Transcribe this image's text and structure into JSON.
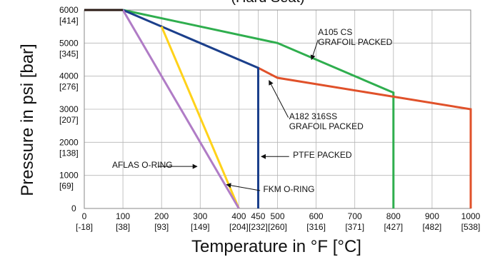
{
  "chart_data": {
    "type": "line",
    "title_fragment": "(Hard Seat)",
    "xlabel": "Temperature in °F [°C]",
    "ylabel": "Pressure in psi [bar]",
    "xlim": [
      0,
      1000
    ],
    "ylim": [
      0,
      6000
    ],
    "grid": true,
    "x_ticks": [
      {
        "value": 0,
        "label": "0",
        "sub": "[-18]"
      },
      {
        "value": 100,
        "label": "100",
        "sub": "[38]"
      },
      {
        "value": 200,
        "label": "200",
        "sub": "[93]"
      },
      {
        "value": 300,
        "label": "300",
        "sub": "[149]"
      },
      {
        "value": 400,
        "label": "400",
        "sub": "[204]"
      },
      {
        "value": 450,
        "label": "450",
        "sub": "[232]"
      },
      {
        "value": 500,
        "label": "500",
        "sub": "[260]"
      },
      {
        "value": 600,
        "label": "600",
        "sub": "[316]"
      },
      {
        "value": 700,
        "label": "700",
        "sub": "[371]"
      },
      {
        "value": 800,
        "label": "800",
        "sub": "[427]"
      },
      {
        "value": 900,
        "label": "900",
        "sub": "[482]"
      },
      {
        "value": 1000,
        "label": "1000",
        "sub": "[538]"
      }
    ],
    "y_ticks": [
      {
        "value": 0,
        "label": "0",
        "sub": ""
      },
      {
        "value": 1000,
        "label": "1000",
        "sub": "[69]"
      },
      {
        "value": 2000,
        "label": "2000",
        "sub": "[138]"
      },
      {
        "value": 3000,
        "label": "3000",
        "sub": "[207]"
      },
      {
        "value": 4000,
        "label": "4000",
        "sub": "[276]"
      },
      {
        "value": 5000,
        "label": "5000",
        "sub": "[345]"
      },
      {
        "value": 6000,
        "label": "6000",
        "sub": "[414]"
      }
    ],
    "series": [
      {
        "id": "common",
        "color": "#2a1a14",
        "width": 3,
        "points": [
          [
            0,
            6000
          ],
          [
            100,
            6000
          ]
        ]
      },
      {
        "id": "aflas",
        "color": "#b07cc6",
        "width": 3,
        "points": [
          [
            100,
            6000
          ],
          [
            400,
            0
          ]
        ]
      },
      {
        "id": "fkm",
        "color": "#ffd21a",
        "width": 3,
        "points": [
          [
            200,
            5500
          ],
          [
            400,
            0
          ]
        ]
      },
      {
        "id": "ptfe",
        "color": "#1b3f8b",
        "width": 3,
        "points": [
          [
            100,
            6000
          ],
          [
            450,
            4250
          ],
          [
            450,
            0
          ]
        ]
      },
      {
        "id": "a182",
        "color": "#e0512a",
        "width": 3,
        "points": [
          [
            450,
            4250
          ],
          [
            500,
            3950
          ],
          [
            1000,
            3000
          ],
          [
            1000,
            0
          ]
        ]
      },
      {
        "id": "a105",
        "color": "#2fae4e",
        "width": 3,
        "points": [
          [
            100,
            6000
          ],
          [
            500,
            5000
          ],
          [
            800,
            3500
          ],
          [
            800,
            0
          ]
        ]
      }
    ],
    "annotations": [
      {
        "id": "a105",
        "lines": [
          "A105 CS",
          "GRAFOIL PACKED"
        ],
        "text_pos": [
          605,
          5250
        ],
        "arrow_from": [
          605,
          5100
        ],
        "arrow_to": [
          588,
          4500
        ]
      },
      {
        "id": "a182",
        "lines": [
          "A182 316SS",
          "GRAFOIL PACKED"
        ],
        "text_pos": [
          530,
          2700
        ],
        "arrow_from": [
          528,
          2750
        ],
        "arrow_to": [
          478,
          3870
        ]
      },
      {
        "id": "ptfe",
        "lines": [
          "PTFE PACKED"
        ],
        "text_pos": [
          540,
          1530
        ],
        "arrow_from": [
          530,
          1570
        ],
        "arrow_to": [
          458,
          1570
        ]
      },
      {
        "id": "aflas",
        "lines": [
          "AFLAS O-RING"
        ],
        "text_pos": [
          72,
          1230
        ],
        "arrow_from": [
          190,
          1270
        ],
        "arrow_to": [
          292,
          1270
        ]
      },
      {
        "id": "fkm",
        "lines": [
          "FKM O-RING"
        ],
        "text_pos": [
          463,
          500
        ],
        "arrow_from": [
          455,
          540
        ],
        "arrow_to": [
          368,
          720
        ]
      }
    ]
  }
}
